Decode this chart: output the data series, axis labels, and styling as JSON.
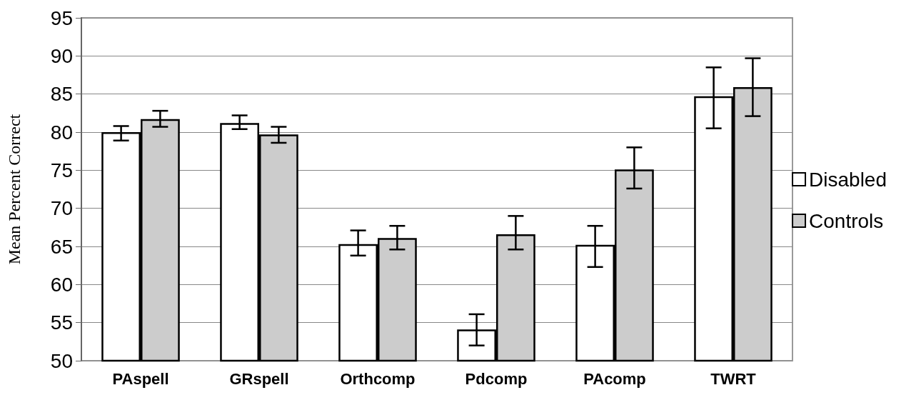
{
  "chart_data": {
    "type": "bar",
    "ylabel": "Mean Percent Correct",
    "categories": [
      "PAspell",
      "GRspell",
      "Orthcomp",
      "Pdcomp",
      "PAcomp",
      "TWRT"
    ],
    "series": [
      {
        "name": "Disabled",
        "color": "#ffffff",
        "values": [
          80.0,
          81.2,
          65.3,
          54.1,
          65.2,
          84.7
        ],
        "errors": [
          [
            78.9,
            80.8
          ],
          [
            80.4,
            82.2
          ],
          [
            63.8,
            67.1
          ],
          [
            52.0,
            56.1
          ],
          [
            62.3,
            67.7
          ],
          [
            80.5,
            88.5
          ]
        ]
      },
      {
        "name": "Controls",
        "color": "#cccccc",
        "values": [
          81.7,
          79.7,
          66.1,
          66.6,
          75.1,
          85.9
        ],
        "errors": [
          [
            80.7,
            82.8
          ],
          [
            78.6,
            80.7
          ],
          [
            64.6,
            67.7
          ],
          [
            64.6,
            69.0
          ],
          [
            72.6,
            78.0
          ],
          [
            82.1,
            89.7
          ]
        ]
      }
    ],
    "ylim": [
      50,
      95
    ],
    "yticks": [
      50,
      55,
      60,
      65,
      70,
      75,
      80,
      85,
      90,
      95
    ],
    "grid": "y",
    "legend": "right"
  }
}
